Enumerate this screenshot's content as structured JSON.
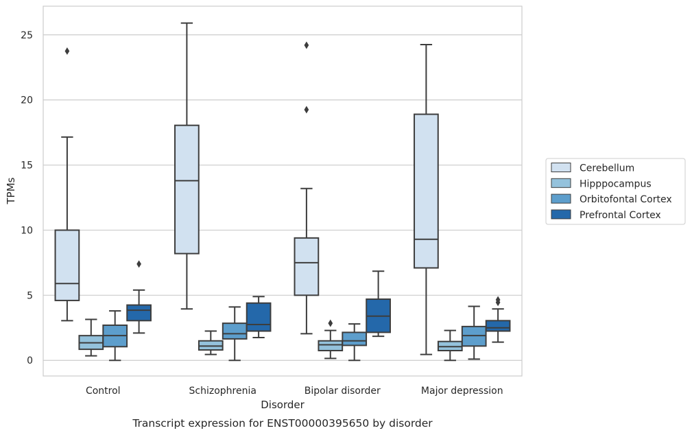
{
  "chart_data": {
    "type": "box",
    "xlabel": "Disorder",
    "ylabel": "TPMs",
    "caption": "Transcript expression for ENST00000395650 by disorder",
    "ylim": [
      -1.2,
      27.2
    ],
    "yticks": [
      0,
      5,
      10,
      15,
      20,
      25
    ],
    "categories": [
      "Control",
      "Schizophrenia",
      "Bipolar disorder",
      "Major depression"
    ],
    "grid": "horizontal",
    "legend_position": "right",
    "series": [
      {
        "name": "Cerebellum",
        "color": "#d1e1f0",
        "boxes": [
          {
            "whislo": 3.05,
            "q1": 4.6,
            "med": 5.9,
            "q3": 10.0,
            "whishi": 17.15,
            "fliers": [
              23.75
            ]
          },
          {
            "whislo": 3.95,
            "q1": 8.2,
            "med": 13.8,
            "q3": 18.05,
            "whishi": 25.9,
            "fliers": []
          },
          {
            "whislo": 2.05,
            "q1": 5.0,
            "med": 7.5,
            "q3": 9.4,
            "whishi": 13.2,
            "fliers": [
              19.25,
              24.2
            ]
          },
          {
            "whislo": 0.45,
            "q1": 7.1,
            "med": 9.3,
            "q3": 18.9,
            "whishi": 24.25,
            "fliers": []
          }
        ]
      },
      {
        "name": "Hipppocampus",
        "color": "#94c2dc",
        "boxes": [
          {
            "whislo": 0.35,
            "q1": 0.85,
            "med": 1.35,
            "q3": 1.9,
            "whishi": 3.15,
            "fliers": []
          },
          {
            "whislo": 0.45,
            "q1": 0.8,
            "med": 1.1,
            "q3": 1.5,
            "whishi": 2.25,
            "fliers": []
          },
          {
            "whislo": 0.15,
            "q1": 0.75,
            "med": 1.2,
            "q3": 1.5,
            "whishi": 2.3,
            "fliers": [
              2.85
            ]
          },
          {
            "whislo": 0.0,
            "q1": 0.75,
            "med": 1.05,
            "q3": 1.45,
            "whishi": 2.3,
            "fliers": []
          }
        ]
      },
      {
        "name": "Orbitofontal Cortex",
        "color": "#5d9ecc",
        "boxes": [
          {
            "whislo": 0.0,
            "q1": 1.05,
            "med": 1.9,
            "q3": 2.7,
            "whishi": 3.8,
            "fliers": []
          },
          {
            "whislo": 0.0,
            "q1": 1.65,
            "med": 2.05,
            "q3": 2.85,
            "whishi": 4.1,
            "fliers": []
          },
          {
            "whislo": 0.0,
            "q1": 1.15,
            "med": 1.5,
            "q3": 2.15,
            "whishi": 2.8,
            "fliers": []
          },
          {
            "whislo": 0.1,
            "q1": 1.1,
            "med": 1.9,
            "q3": 2.6,
            "whishi": 4.15,
            "fliers": []
          }
        ]
      },
      {
        "name": "Prefrontal Cortex",
        "color": "#2468aa",
        "boxes": [
          {
            "whislo": 2.1,
            "q1": 3.05,
            "med": 3.85,
            "q3": 4.25,
            "whishi": 5.4,
            "fliers": [
              7.4
            ]
          },
          {
            "whislo": 1.75,
            "q1": 2.25,
            "med": 2.75,
            "q3": 4.4,
            "whishi": 4.9,
            "fliers": []
          },
          {
            "whislo": 1.85,
            "q1": 2.15,
            "med": 3.4,
            "q3": 4.7,
            "whishi": 6.85,
            "fliers": []
          },
          {
            "whislo": 1.4,
            "q1": 2.25,
            "med": 2.5,
            "q3": 3.05,
            "whishi": 3.95,
            "fliers": [
              4.45,
              4.65
            ]
          }
        ]
      }
    ]
  }
}
